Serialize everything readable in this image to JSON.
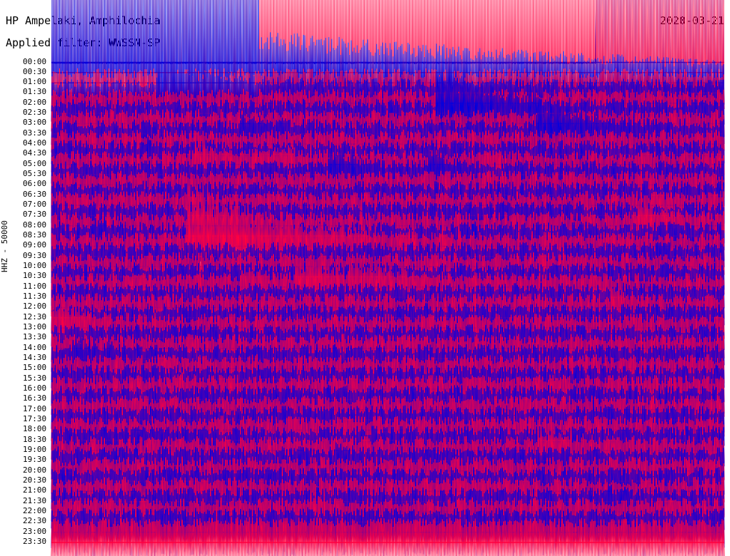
{
  "header": {
    "title": "HP Ampelaki, Amphilochia",
    "filter": "Applied filter: WWSSN-SP",
    "date": "2020-03-21"
  },
  "axis": {
    "ylabel": "HHZ - 50000"
  },
  "colors": {
    "blue": "#0000e0",
    "red": "#ff0040",
    "background": "#ffffff",
    "text": "#000000"
  },
  "chart_data": {
    "type": "line",
    "title": "HP Ampelaki, Amphilochia",
    "subtitle": "Applied filter: WWSSN-SP",
    "ylabel": "HHZ - 50000",
    "xlabel": "",
    "grid": false,
    "legend": "none",
    "series_colors_alternate": [
      "blue",
      "red"
    ],
    "rows": [
      "00:00",
      "00:30",
      "01:00",
      "01:30",
      "02:00",
      "02:30",
      "03:00",
      "03:30",
      "04:00",
      "04:30",
      "05:00",
      "05:30",
      "06:00",
      "06:30",
      "07:00",
      "07:30",
      "08:00",
      "08:30",
      "09:00",
      "09:30",
      "10:00",
      "10:30",
      "11:00",
      "11:30",
      "12:00",
      "12:30",
      "13:00",
      "13:30",
      "14:00",
      "14:30",
      "15:00",
      "15:30",
      "16:00",
      "16:30",
      "17:00",
      "17:30",
      "18:00",
      "18:30",
      "19:00",
      "19:30",
      "20:00",
      "20:30",
      "21:00",
      "21:30",
      "22:00",
      "22:30",
      "23:00",
      "23:30"
    ],
    "events": [
      {
        "row": 2,
        "pos": 0.01,
        "amp": 1.0,
        "dur": 0.04
      },
      {
        "row": 2,
        "pos": 0.15,
        "amp": 1.4,
        "dur": 0.05
      },
      {
        "row": 4,
        "pos": 0.155,
        "amp": 3.0,
        "dur": 0.09
      },
      {
        "row": 2,
        "pos": 0.24,
        "amp": 0.9,
        "dur": 0.03
      },
      {
        "row": 8,
        "pos": 0.28,
        "amp": 1.2,
        "dur": 0.04
      },
      {
        "row": 6,
        "pos": 0.57,
        "amp": 5.5,
        "dur": 0.07
      },
      {
        "row": 8,
        "pos": 0.72,
        "amp": 3.0,
        "dur": 0.07
      },
      {
        "row": 10,
        "pos": 0.13,
        "amp": 0.6,
        "dur": 0.03
      },
      {
        "row": 12,
        "pos": 0.56,
        "amp": 1.4,
        "dur": 0.03
      },
      {
        "row": 17,
        "pos": 0.87,
        "amp": 1.8,
        "dur": 0.04
      },
      {
        "row": 18,
        "pos": 0.06,
        "amp": 0.6,
        "dur": 0.03
      },
      {
        "row": 10,
        "pos": 1.21,
        "amp": 1.5,
        "dur": 0.05
      },
      {
        "row": 10,
        "pos": 1.33,
        "amp": 1.0,
        "dur": 0.04
      },
      {
        "row": 11,
        "pos": 1.41,
        "amp": 1.8,
        "dur": 0.05
      },
      {
        "row": 22,
        "pos": 1.28,
        "amp": 1.0,
        "dur": 0.04
      },
      {
        "row": 22,
        "pos": 1.36,
        "amp": 1.4,
        "dur": 0.05
      },
      {
        "row": 22,
        "pos": 1.44,
        "amp": 1.9,
        "dur": 0.06
      },
      {
        "row": 23,
        "pos": 0.38,
        "amp": 1.3,
        "dur": 0.04
      },
      {
        "row": 25,
        "pos": 0.83,
        "amp": 0.8,
        "dur": 0.03
      },
      {
        "row": 26,
        "pos": 1.0,
        "amp": 1.6,
        "dur": 0.05
      },
      {
        "row": 28,
        "pos": 0.68,
        "amp": 0.5,
        "dur": 0.03
      },
      {
        "row": 29,
        "pos": 1.03,
        "amp": 1.2,
        "dur": 0.05
      },
      {
        "row": 32,
        "pos": 1.18,
        "amp": 0.5,
        "dur": 0.02
      },
      {
        "row": 36,
        "pos": 0.8,
        "amp": 0.5,
        "dur": 0.03
      },
      {
        "row": 39,
        "pos": 0.72,
        "amp": 1.6,
        "dur": 0.05
      },
      {
        "row": 40,
        "pos": 0.42,
        "amp": 0.6,
        "dur": 0.03
      },
      {
        "row": 42,
        "pos": 0.16,
        "amp": 0.4,
        "dur": 0.03
      },
      {
        "row": 44,
        "pos": 1.38,
        "amp": 0.7,
        "dur": 0.02
      },
      {
        "row": 44,
        "pos": 0.82,
        "amp": 0.5,
        "dur": 0.03
      },
      {
        "row": 46,
        "pos": 0.32,
        "amp": 0.6,
        "dur": 0.03
      },
      {
        "row": 46,
        "pos": 1.23,
        "amp": 0.5,
        "dur": 0.04
      },
      {
        "row": 19,
        "pos": 0.2,
        "amp": 7.0,
        "dur": 0.12
      },
      {
        "row": 0,
        "pos": 0.81,
        "amp": 30.0,
        "dur": 1.0
      }
    ]
  }
}
